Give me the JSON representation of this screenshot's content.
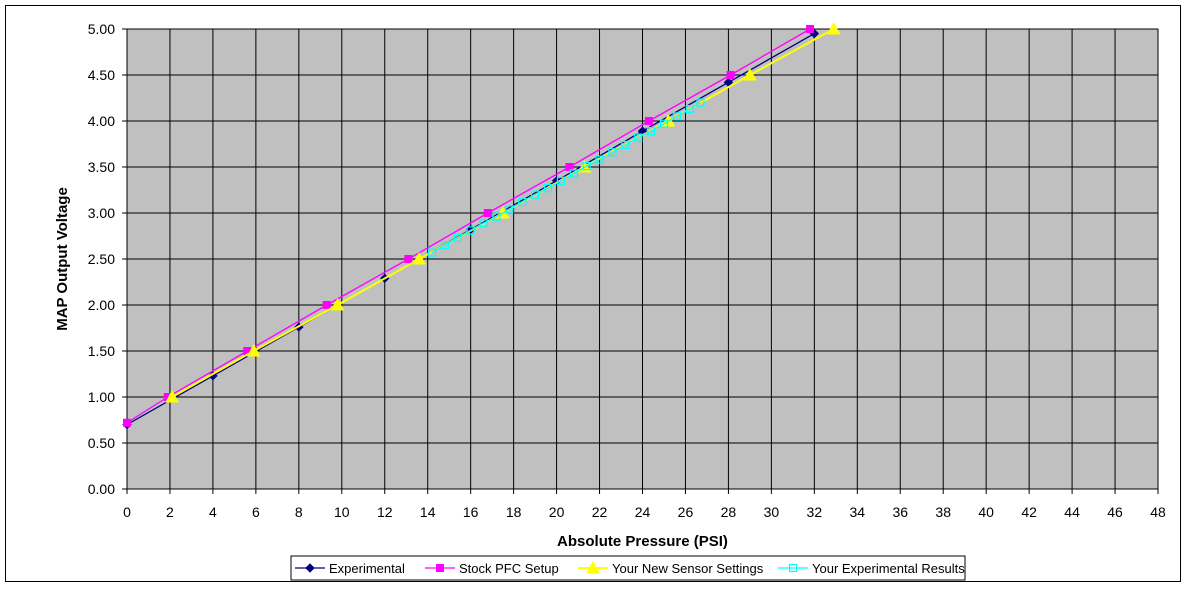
{
  "chart_data": {
    "type": "line",
    "title": "",
    "xlabel": "Absolute Pressure (PSI)",
    "ylabel": "MAP Output Voltage",
    "xlim": [
      0,
      48
    ],
    "ylim": [
      0,
      5
    ],
    "x_ticks": [
      "0",
      "2",
      "4",
      "6",
      "8",
      "10",
      "12",
      "14",
      "16",
      "18",
      "20",
      "22",
      "24",
      "26",
      "28",
      "30",
      "32",
      "34",
      "36",
      "38",
      "40",
      "42",
      "44",
      "46",
      "48"
    ],
    "y_ticks": [
      "0.00",
      "0.50",
      "1.00",
      "1.50",
      "2.00",
      "2.50",
      "3.00",
      "3.50",
      "4.00",
      "4.50",
      "5.00"
    ],
    "grid": true,
    "plot_background": "#c0c0c0",
    "legend_position": "bottom",
    "series": [
      {
        "name": "Experimental",
        "color": "#000080",
        "marker": "diamond",
        "x": [
          0,
          4,
          8,
          12,
          16,
          20,
          24,
          28,
          32
        ],
        "y": [
          0.7,
          1.23,
          1.76,
          2.29,
          2.82,
          3.35,
          3.89,
          4.42,
          4.95
        ]
      },
      {
        "name": "Stock PFC Setup",
        "color": "#ff00ff",
        "marker": "square",
        "x": [
          0,
          1.9,
          5.6,
          9.3,
          13.1,
          16.8,
          20.6,
          24.3,
          28.1,
          31.8
        ],
        "y": [
          0.72,
          1.0,
          1.5,
          2.0,
          2.5,
          3.0,
          3.5,
          4.0,
          4.5,
          5.0
        ]
      },
      {
        "name": "Your New Sensor Settings",
        "color": "#ffff00",
        "marker": "triangle",
        "x": [
          2.1,
          5.9,
          9.8,
          13.6,
          17.5,
          21.3,
          25.2,
          29.0,
          32.9
        ],
        "y": [
          1.0,
          1.5,
          2.0,
          2.5,
          3.0,
          3.5,
          4.0,
          4.5,
          5.0
        ]
      },
      {
        "name": "Your Experimental Results",
        "color": "#00ffff",
        "marker": "square-open",
        "x": [
          14.2,
          14.8,
          15.4,
          16.0,
          16.6,
          17.2,
          17.8,
          18.4,
          19.0,
          19.6,
          20.2,
          20.8,
          21.4,
          22.0,
          22.6,
          23.2,
          23.8,
          24.4,
          25.0,
          25.6,
          26.2,
          26.7
        ],
        "y": [
          2.57,
          2.65,
          2.73,
          2.81,
          2.89,
          2.96,
          3.04,
          3.12,
          3.2,
          3.27,
          3.35,
          3.43,
          3.51,
          3.58,
          3.66,
          3.74,
          3.82,
          3.89,
          3.97,
          4.05,
          4.13,
          4.2
        ]
      }
    ]
  }
}
